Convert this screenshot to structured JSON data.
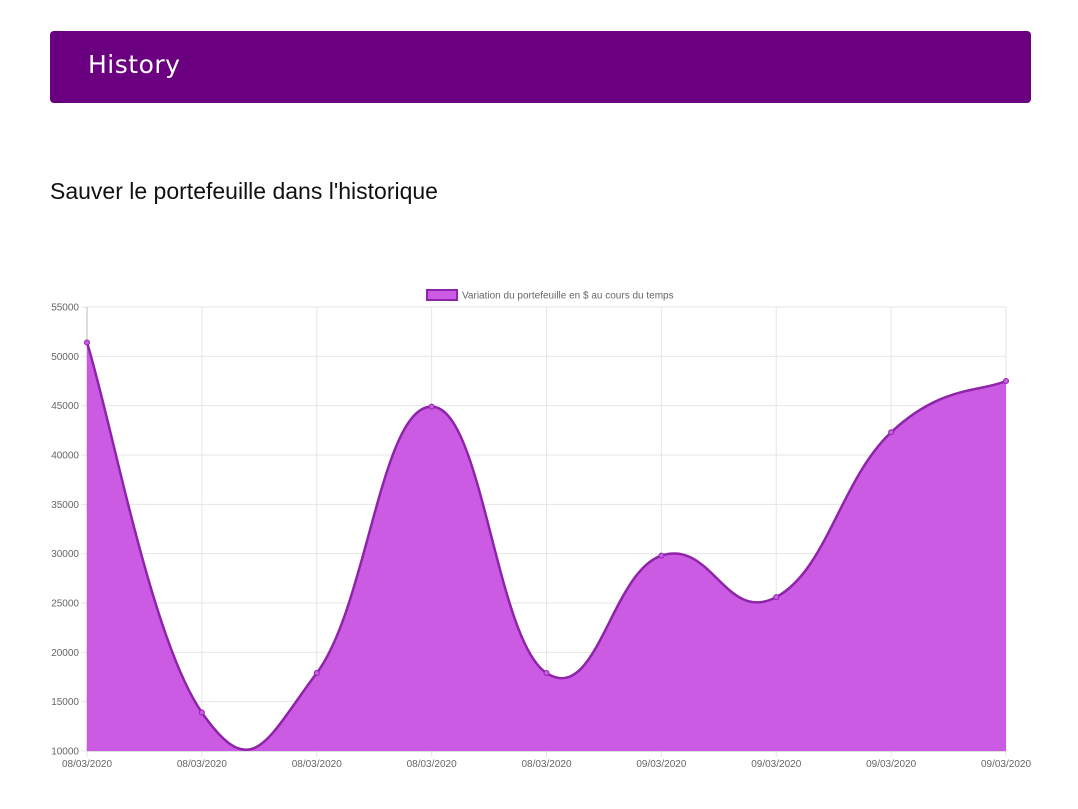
{
  "header": {
    "title": "History"
  },
  "main": {
    "heading": "Sauver le portefeuille dans l'historique"
  },
  "colors": {
    "header_bg": "#6a007f",
    "area_fill": "#cc5be3",
    "line": "#8e24aa"
  },
  "chart_data": {
    "type": "area",
    "legend": {
      "label": "Variation du portefeuille en $ au cours du temps",
      "placement": "top-center"
    },
    "categories": [
      "08/03/2020",
      "08/03/2020",
      "08/03/2020",
      "08/03/2020",
      "08/03/2020",
      "09/03/2020",
      "09/03/2020",
      "09/03/2020",
      "09/03/2020"
    ],
    "series": [
      {
        "name": "Variation du portefeuille en $ au cours du temps",
        "values": [
          51400,
          13900,
          17900,
          44900,
          17900,
          29800,
          25600,
          42300,
          47500
        ]
      }
    ],
    "ylim": [
      10000,
      55000
    ],
    "yticks": [
      10000,
      15000,
      20000,
      25000,
      30000,
      35000,
      40000,
      45000,
      50000,
      55000
    ],
    "grid": true
  }
}
